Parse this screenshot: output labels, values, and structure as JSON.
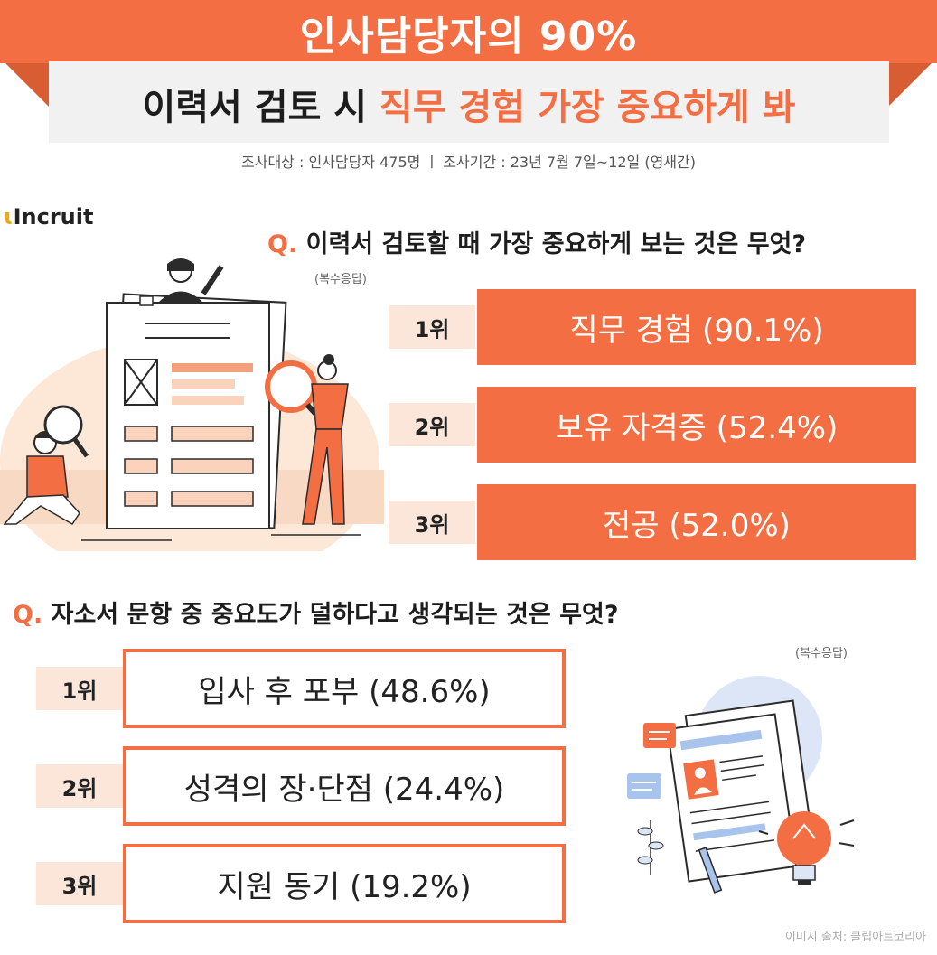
{
  "header": {
    "title": "인사담당자의 90%",
    "subtitle_part1": "이력서 검토 시 ",
    "subtitle_highlight": "직무 경험 가장 중요하게 봐",
    "survey_info": "조사대상 : 인사담당자 475명  ㅣ  조사기간 : 23년 7월 7일~12일 (영새간)"
  },
  "logo": {
    "dot": "ɩ",
    "text": "Incruit"
  },
  "question1": {
    "q_mark": "Q.",
    "text": " 이력서 검토할 때 가장 중요하게 보는 것은 무엇?",
    "note": "(복수응답)",
    "ranks": [
      {
        "rank": "1위",
        "label": "직무 경험 (90.1%)"
      },
      {
        "rank": "2위",
        "label": "보유 자격증 (52.4%)"
      },
      {
        "rank": "3위",
        "label": "전공 (52.0%)"
      }
    ]
  },
  "question2": {
    "q_mark": "Q.",
    "text": " 자소서 문항 중 중요도가 덜하다고 생각되는 것은 무엇?",
    "note": "(복수응답)",
    "ranks": [
      {
        "rank": "1위",
        "label": "입사 후 포부 (48.6%)"
      },
      {
        "rank": "2위",
        "label": "성격의 장·단점 (24.4%)"
      },
      {
        "rank": "3위",
        "label": "지원 동기 (19.2%)"
      }
    ]
  },
  "credit": "이미지 출처: 클립아트코리아",
  "colors": {
    "accent": "#f36f43",
    "rank_bg": "#fbe6d9",
    "sub_bg": "#f1f1f1"
  }
}
